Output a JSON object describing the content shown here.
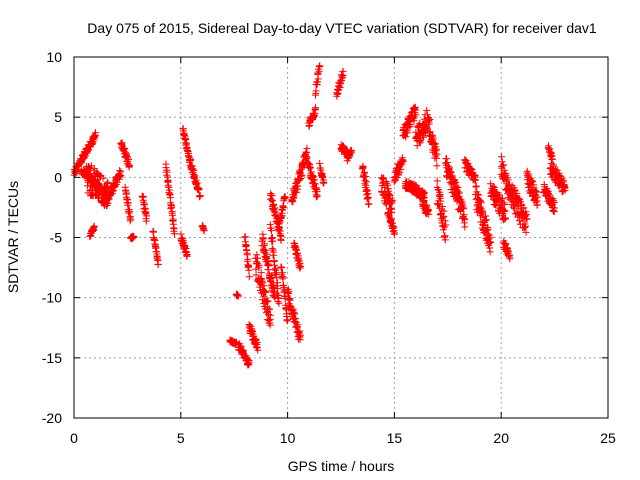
{
  "chart_data": {
    "type": "scatter",
    "title": "Day 075 of 2015, Sidereal Day-to-day VTEC variation (SDTVAR) for receiver dav1",
    "xlabel": "GPS time / hours",
    "ylabel": "SDTVAR / TECUs",
    "xlim": [
      0,
      25
    ],
    "ylim": [
      -20,
      10
    ],
    "xticks": [
      0,
      5,
      10,
      15,
      20,
      25
    ],
    "yticks": [
      -20,
      -15,
      -10,
      -5,
      0,
      5,
      10
    ],
    "xtick_labels": [
      "0",
      "5",
      "10",
      "15",
      "20",
      "25"
    ],
    "ytick_labels": [
      "-20",
      "-15",
      "-10",
      "-5",
      "0",
      "5",
      "10"
    ],
    "grid": true,
    "marker": "+",
    "series": [
      {
        "name": "dav1",
        "color": "#ff0000",
        "segments": [
          [
            0.0,
            1.0,
            0.35,
            3.5,
            0.25
          ],
          [
            0.35,
            1.5,
            0.6,
            -1.5,
            0.3
          ],
          [
            0.6,
            1.6,
            0.0,
            -1.5,
            1.3
          ],
          [
            0.75,
            0.95,
            -4.8,
            -4.2,
            0.15
          ],
          [
            1.5,
            2.2,
            -2.0,
            0.5,
            0.4
          ],
          [
            2.2,
            2.6,
            2.9,
            1.0,
            0.3
          ],
          [
            2.4,
            2.65,
            -1.0,
            -3.5,
            0.3
          ],
          [
            2.65,
            2.8,
            -5.0,
            -5.0,
            0.1
          ],
          [
            3.2,
            3.4,
            -1.5,
            -3.5,
            0.3
          ],
          [
            3.7,
            3.95,
            -4.5,
            -7.3,
            0.2
          ],
          [
            4.3,
            4.7,
            1.0,
            -4.5,
            0.3
          ],
          [
            5.1,
            5.4,
            4.0,
            1.5,
            0.2
          ],
          [
            5.0,
            5.3,
            -5.0,
            -6.5,
            0.3
          ],
          [
            5.4,
            5.9,
            1.5,
            -1.5,
            0.3
          ],
          [
            6.0,
            6.1,
            -4.0,
            -4.5,
            0.1
          ],
          [
            7.3,
            7.6,
            -13.6,
            -13.8,
            0.1
          ],
          [
            7.6,
            7.7,
            -9.8,
            -9.8,
            0.1
          ],
          [
            7.7,
            8.2,
            -14.0,
            -15.5,
            0.3
          ],
          [
            8.0,
            8.2,
            -5.0,
            -8.0,
            0.3
          ],
          [
            8.2,
            8.6,
            -12.5,
            -14.0,
            0.4
          ],
          [
            8.5,
            9.2,
            -7.0,
            -12.0,
            1.0
          ],
          [
            8.8,
            9.4,
            -5.0,
            -10.0,
            0.6
          ],
          [
            9.2,
            9.6,
            -4.0,
            -10.5,
            0.7
          ],
          [
            9.2,
            9.7,
            -1.5,
            -5.0,
            0.4
          ],
          [
            9.6,
            9.9,
            -4.0,
            -1.5,
            0.3
          ],
          [
            9.7,
            10.0,
            -7.3,
            -12.0,
            0.3
          ],
          [
            10.0,
            10.6,
            -9.5,
            -13.5,
            0.5
          ],
          [
            10.3,
            10.6,
            -5.5,
            -7.5,
            0.3
          ],
          [
            10.2,
            10.9,
            -2.0,
            2.0,
            0.5
          ],
          [
            10.9,
            11.4,
            1.5,
            -1.5,
            0.4
          ],
          [
            11.0,
            11.3,
            4.5,
            5.5,
            0.3
          ],
          [
            11.3,
            11.5,
            7.0,
            9.2,
            0.4
          ],
          [
            11.5,
            11.7,
            1.0,
            -0.5,
            0.2
          ],
          [
            12.3,
            12.6,
            7.0,
            8.7,
            0.4
          ],
          [
            12.5,
            12.9,
            2.5,
            1.8,
            0.3
          ],
          [
            12.8,
            13.0,
            1.5,
            2.2,
            0.2
          ],
          [
            13.5,
            13.8,
            1.0,
            -2.0,
            0.5
          ],
          [
            14.4,
            14.9,
            -0.5,
            -2.5,
            1.0
          ],
          [
            14.7,
            15.0,
            -3.0,
            -4.5,
            0.3
          ],
          [
            15.0,
            15.4,
            0.0,
            1.5,
            0.5
          ],
          [
            15.4,
            16.0,
            3.5,
            5.5,
            0.6
          ],
          [
            15.5,
            16.4,
            -0.5,
            -1.5,
            0.4
          ],
          [
            16.0,
            16.6,
            3.0,
            5.0,
            0.9
          ],
          [
            16.3,
            16.6,
            -2.0,
            -3.0,
            0.4
          ],
          [
            16.6,
            17.0,
            4.5,
            1.5,
            0.8
          ],
          [
            17.0,
            17.4,
            -1.0,
            -4.5,
            1.0
          ],
          [
            17.4,
            18.0,
            1.0,
            -2.0,
            0.8
          ],
          [
            17.8,
            18.3,
            -0.5,
            -3.5,
            0.7
          ],
          [
            18.3,
            18.8,
            1.0,
            0.0,
            0.5
          ],
          [
            18.8,
            19.5,
            -1.5,
            -5.5,
            1.0
          ],
          [
            19.5,
            20.2,
            -1.0,
            -3.0,
            0.8
          ],
          [
            20.0,
            20.5,
            1.0,
            -2.0,
            0.8
          ],
          [
            20.1,
            20.4,
            -5.5,
            -6.5,
            0.3
          ],
          [
            20.5,
            21.2,
            -1.5,
            -4.0,
            1.0
          ],
          [
            21.2,
            21.7,
            0.0,
            -2.0,
            0.7
          ],
          [
            22.2,
            22.4,
            2.5,
            1.5,
            0.2
          ],
          [
            22.0,
            22.5,
            -1.0,
            -2.5,
            0.5
          ],
          [
            22.3,
            23.0,
            0.8,
            -1.0,
            0.6
          ]
        ]
      }
    ]
  }
}
